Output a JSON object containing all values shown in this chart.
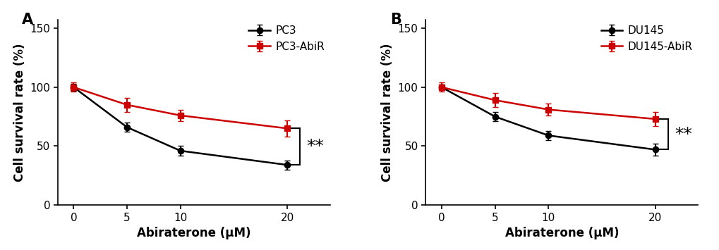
{
  "panel_A": {
    "label": "A",
    "x": [
      0,
      5,
      10,
      20
    ],
    "black_y": [
      100,
      66,
      46,
      34
    ],
    "black_yerr": [
      3,
      4,
      4,
      4
    ],
    "red_y": [
      100,
      85,
      76,
      65
    ],
    "red_yerr": [
      4,
      6,
      5,
      7
    ],
    "black_label": "PC3",
    "red_label": "PC3-AbiR",
    "sig_y1": 34,
    "sig_y2": 65
  },
  "panel_B": {
    "label": "B",
    "x": [
      0,
      5,
      10,
      20
    ],
    "black_y": [
      100,
      75,
      59,
      47
    ],
    "black_yerr": [
      2,
      4,
      4,
      5
    ],
    "red_y": [
      100,
      89,
      81,
      73
    ],
    "red_yerr": [
      4,
      6,
      5,
      6
    ],
    "black_label": "DU145",
    "red_label": "DU145-AbiR",
    "sig_y1": 47,
    "sig_y2": 73
  },
  "ylabel": "Cell survival rate (%)",
  "xlabel": "Abiraterone (μM)",
  "ylim": [
    0,
    157
  ],
  "yticks": [
    0,
    50,
    100,
    150
  ],
  "xlim": [
    -1.5,
    24
  ],
  "black_color": "#000000",
  "red_color": "#cc0000",
  "linewidth": 1.8,
  "marker_size": 6,
  "capsize": 3,
  "elinewidth": 1.5,
  "font_size_label": 12,
  "font_size_tick": 11,
  "font_size_panel": 15,
  "font_size_legend": 11,
  "font_size_sig": 18
}
